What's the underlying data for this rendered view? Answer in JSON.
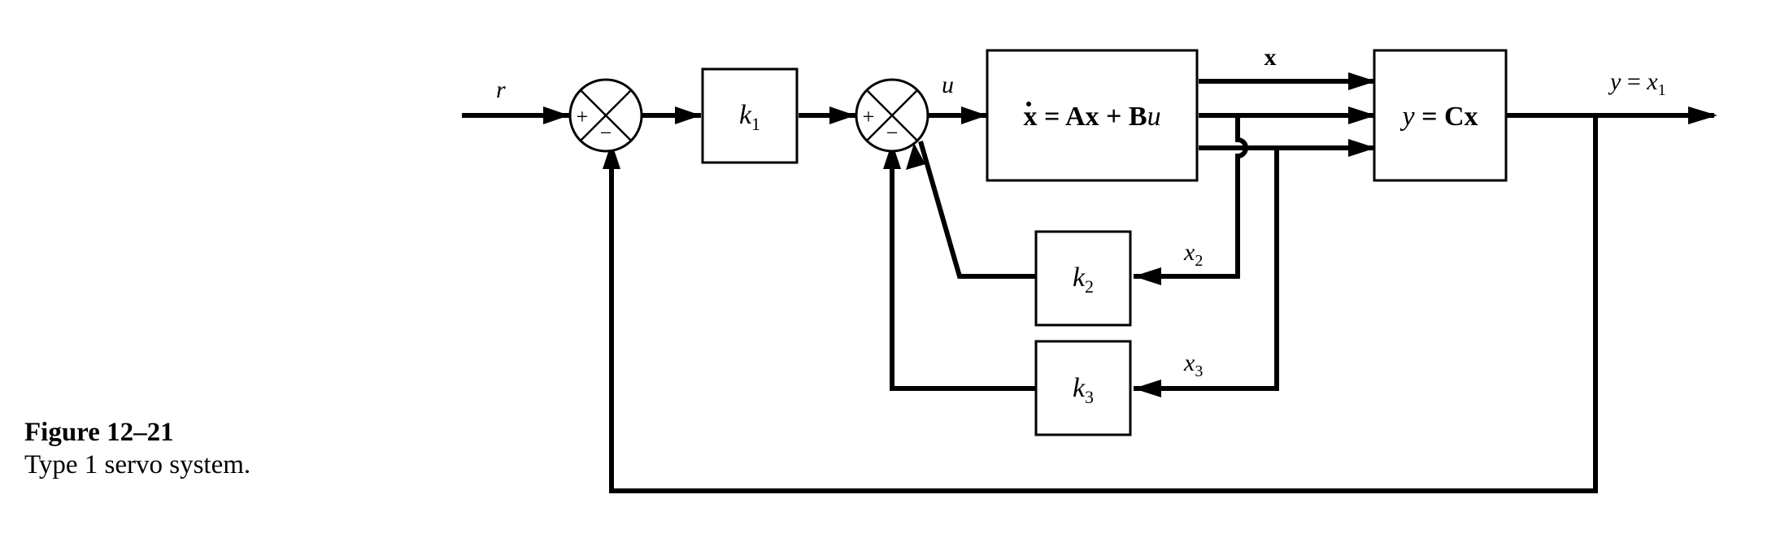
{
  "figure": {
    "number": "Figure 12–21",
    "caption": "Type 1 servo system."
  },
  "signals": {
    "r": "r",
    "u": "u",
    "x": "x",
    "x2": "x",
    "x2_sub": "2",
    "x3": "x",
    "x3_sub": "3",
    "y_lhs": "y",
    "y_eq": " = ",
    "y_rhs": "x",
    "y_sub": "1"
  },
  "blocks": {
    "k1": {
      "base": "k",
      "sub": "1"
    },
    "k2": {
      "base": "k",
      "sub": "2"
    },
    "k3": {
      "base": "k",
      "sub": "3"
    },
    "state": {
      "xdot": "x",
      "eq": " = ",
      "A": "A",
      "x1": "x",
      "plus": " + ",
      "B": "B",
      "u": "u"
    },
    "output": {
      "y": "y",
      "eq": " = ",
      "C": "C",
      "x": "x"
    }
  },
  "summing_junctions": {
    "sj1": {
      "plus": "+",
      "minus": "−"
    },
    "sj2": {
      "plus": "+",
      "minus": "−"
    }
  }
}
